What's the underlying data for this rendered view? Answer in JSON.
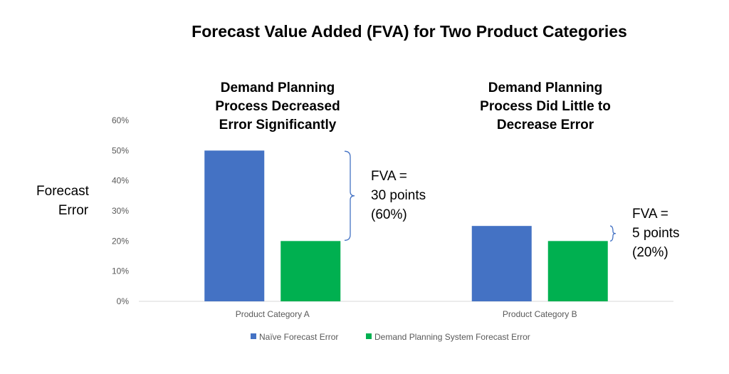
{
  "chart_data": {
    "type": "bar",
    "title": "Forecast Value Added (FVA) for Two Product Categories",
    "ylabel": "Forecast Error",
    "xlabel": "",
    "categories": [
      "Product Category A",
      "Product Category B"
    ],
    "series": [
      {
        "name": "Naïve Forecast Error",
        "values": [
          50,
          25
        ],
        "color": "#4472C4"
      },
      {
        "name": "Demand Planning System Forecast Error",
        "values": [
          20,
          20
        ],
        "color": "#00B050"
      }
    ],
    "ylim": [
      0,
      60
    ],
    "yticks": [
      "0%",
      "10%",
      "20%",
      "30%",
      "40%",
      "50%",
      "60%"
    ],
    "grid": false,
    "legend": "bottom",
    "annotations": {
      "cat_a_heading": [
        "Demand Planning",
        "Process Decreased",
        "Error Significantly"
      ],
      "cat_a_fva": [
        "FVA =",
        "30 points",
        "(60%)"
      ],
      "cat_b_heading": [
        "Demand Planning",
        "Process Did Little to",
        "Decrease Error"
      ],
      "cat_b_fva": [
        "FVA =",
        "5 points",
        "(20%)"
      ]
    },
    "brace_color": "#4472C4"
  }
}
